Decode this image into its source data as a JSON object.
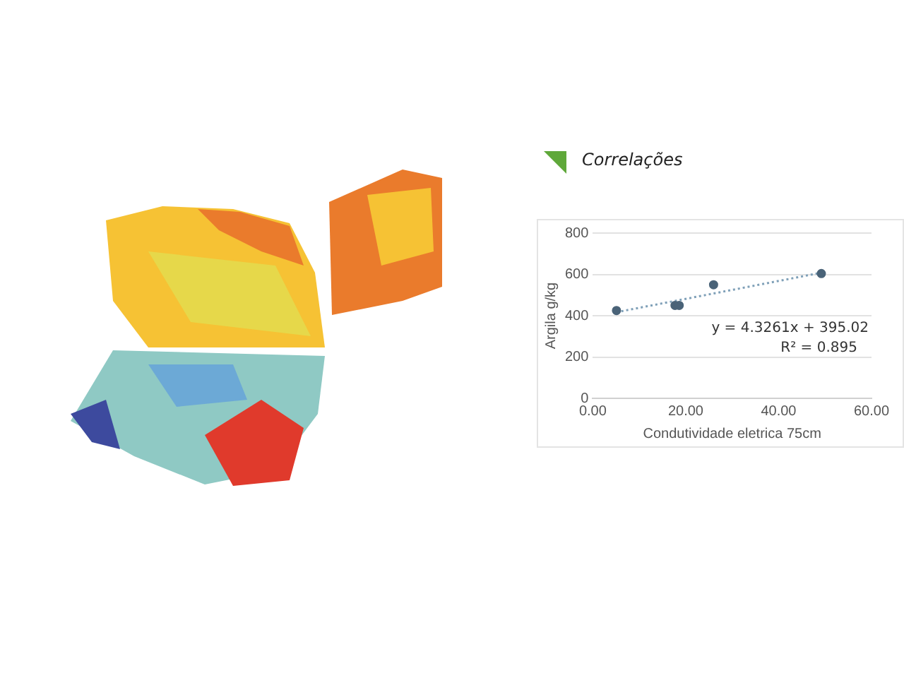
{
  "chart_data": {
    "type": "scatter",
    "title": "Correlações",
    "xlabel": "Condutividade eletrica 75cm",
    "ylabel": "Argila g/kg",
    "series": [
      {
        "type": "scatter",
        "color": "#4a6378",
        "x": [
          5.1,
          17.7,
          18.6,
          26.0,
          49.2
        ],
        "values": [
          425,
          450,
          450,
          550,
          604
        ]
      },
      {
        "type": "line",
        "color": "#7fa0b8",
        "line_style": "dotted",
        "marker": "none",
        "x": [
          5.1,
          49.2
        ],
        "values": [
          417,
          608
        ]
      }
    ],
    "marker": "circle",
    "xlim": [
      0,
      60
    ],
    "xticks": [
      {
        "value": 0,
        "label": "0.00"
      },
      {
        "value": 20,
        "label": "20.00"
      },
      {
        "value": 40,
        "label": "40.00"
      },
      {
        "value": 60,
        "label": "60.00"
      }
    ],
    "ylim": [
      0,
      800
    ],
    "yticks": [
      0,
      200,
      400,
      600,
      800
    ],
    "grid": "y",
    "annotations": [
      "y = 4.3261x + 395.02",
      "R² = 0.895"
    ]
  }
}
